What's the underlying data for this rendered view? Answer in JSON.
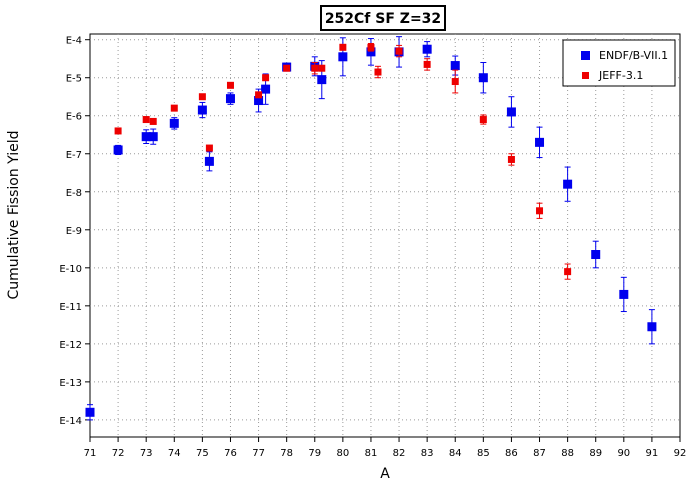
{
  "chart_data": {
    "type": "scatter",
    "title": "252Cf SF Z=32",
    "xlabel": "A",
    "ylabel": "Cumulative Fission Yield",
    "x_range": [
      71,
      92
    ],
    "x_ticks": [
      "71",
      "72",
      "73",
      "74",
      "75",
      "76",
      "77",
      "78",
      "79",
      "80",
      "81",
      "82",
      "83",
      "84",
      "85",
      "86",
      "87",
      "88",
      "89",
      "90",
      "91",
      "92"
    ],
    "y_scale": "log",
    "y_range_log10": [
      -14.45,
      -3.85
    ],
    "y_ticks": [
      {
        "log10": -4,
        "label": "E-4"
      },
      {
        "log10": -5,
        "label": "E-5"
      },
      {
        "log10": -6,
        "label": "E-6"
      },
      {
        "log10": -7,
        "label": "E-7"
      },
      {
        "log10": -8,
        "label": "E-8"
      },
      {
        "log10": -9,
        "label": "E-9"
      },
      {
        "log10": -10,
        "label": "E-10"
      },
      {
        "log10": -11,
        "label": "E-11"
      },
      {
        "log10": -12,
        "label": "E-12"
      },
      {
        "log10": -13,
        "label": "E-13"
      },
      {
        "log10": -14,
        "label": "E-14"
      }
    ],
    "grid": true,
    "legend_position": "top-right",
    "series": [
      {
        "name": "ENDF/B-VII.1",
        "color": "#0000ee",
        "marker": "square-large",
        "points": [
          {
            "x": 71.0,
            "y_log10": -13.8,
            "err": 0.2
          },
          {
            "x": 72.0,
            "y_log10": -6.9,
            "err": 0.12
          },
          {
            "x": 73.0,
            "y_log10": -6.55,
            "err": 0.18
          },
          {
            "x": 73.25,
            "y_log10": -6.55,
            "err": 0.2
          },
          {
            "x": 74.0,
            "y_log10": -6.2,
            "err": 0.15
          },
          {
            "x": 75.0,
            "y_log10": -5.85,
            "err": 0.2
          },
          {
            "x": 75.25,
            "y_log10": -7.2,
            "err": 0.25
          },
          {
            "x": 76.0,
            "y_log10": -5.55,
            "err": 0.15
          },
          {
            "x": 77.0,
            "y_log10": -5.6,
            "err": 0.3
          },
          {
            "x": 77.25,
            "y_log10": -5.3,
            "err": 0.4
          },
          {
            "x": 78.0,
            "y_log10": -4.72,
            "err": 0.1
          },
          {
            "x": 79.0,
            "y_log10": -4.7,
            "err": 0.25
          },
          {
            "x": 79.25,
            "y_log10": -5.05,
            "err": 0.5
          },
          {
            "x": 80.0,
            "y_log10": -4.45,
            "err": 0.5
          },
          {
            "x": 81.0,
            "y_log10": -4.32,
            "err": 0.35
          },
          {
            "x": 82.0,
            "y_log10": -4.32,
            "err": 0.4
          },
          {
            "x": 83.0,
            "y_log10": -4.25,
            "err": 0.2
          },
          {
            "x": 84.0,
            "y_log10": -4.68,
            "err": 0.25
          },
          {
            "x": 85.0,
            "y_log10": -5.0,
            "err": 0.4
          },
          {
            "x": 86.0,
            "y_log10": -5.9,
            "err": 0.4
          },
          {
            "x": 87.0,
            "y_log10": -6.7,
            "err": 0.4
          },
          {
            "x": 88.0,
            "y_log10": -7.8,
            "err": 0.45
          },
          {
            "x": 89.0,
            "y_log10": -9.65,
            "err": 0.35
          },
          {
            "x": 90.0,
            "y_log10": -10.7,
            "err": 0.45
          },
          {
            "x": 91.0,
            "y_log10": -11.55,
            "err": 0.45
          }
        ]
      },
      {
        "name": "JEFF-3.1",
        "color": "#ee0000",
        "marker": "square-small",
        "points": [
          {
            "x": 72.0,
            "y_log10": -6.4,
            "err": 0
          },
          {
            "x": 73.0,
            "y_log10": -6.1,
            "err": 0
          },
          {
            "x": 73.25,
            "y_log10": -6.15,
            "err": 0
          },
          {
            "x": 74.0,
            "y_log10": -5.8,
            "err": 0
          },
          {
            "x": 75.0,
            "y_log10": -5.5,
            "err": 0
          },
          {
            "x": 75.25,
            "y_log10": -6.85,
            "err": 0.05
          },
          {
            "x": 76.0,
            "y_log10": -5.2,
            "err": 0
          },
          {
            "x": 77.0,
            "y_log10": -5.45,
            "err": 0
          },
          {
            "x": 77.25,
            "y_log10": -5.0,
            "err": 0
          },
          {
            "x": 78.0,
            "y_log10": -4.75,
            "err": 0
          },
          {
            "x": 79.0,
            "y_log10": -4.75,
            "err": 0.15
          },
          {
            "x": 79.25,
            "y_log10": -4.75,
            "err": 0
          },
          {
            "x": 80.0,
            "y_log10": -4.2,
            "err": 0
          },
          {
            "x": 81.0,
            "y_log10": -4.2,
            "err": 0.1
          },
          {
            "x": 81.25,
            "y_log10": -4.85,
            "err": 0.15
          },
          {
            "x": 82.0,
            "y_log10": -4.3,
            "err": 0.15
          },
          {
            "x": 83.0,
            "y_log10": -4.65,
            "err": 0.15
          },
          {
            "x": 84.0,
            "y_log10": -5.1,
            "err": 0.3
          },
          {
            "x": 85.0,
            "y_log10": -6.1,
            "err": 0.12
          },
          {
            "x": 86.0,
            "y_log10": -7.15,
            "err": 0.15
          },
          {
            "x": 87.0,
            "y_log10": -8.5,
            "err": 0.2
          },
          {
            "x": 88.0,
            "y_log10": -10.1,
            "err": 0.2
          }
        ]
      }
    ]
  }
}
